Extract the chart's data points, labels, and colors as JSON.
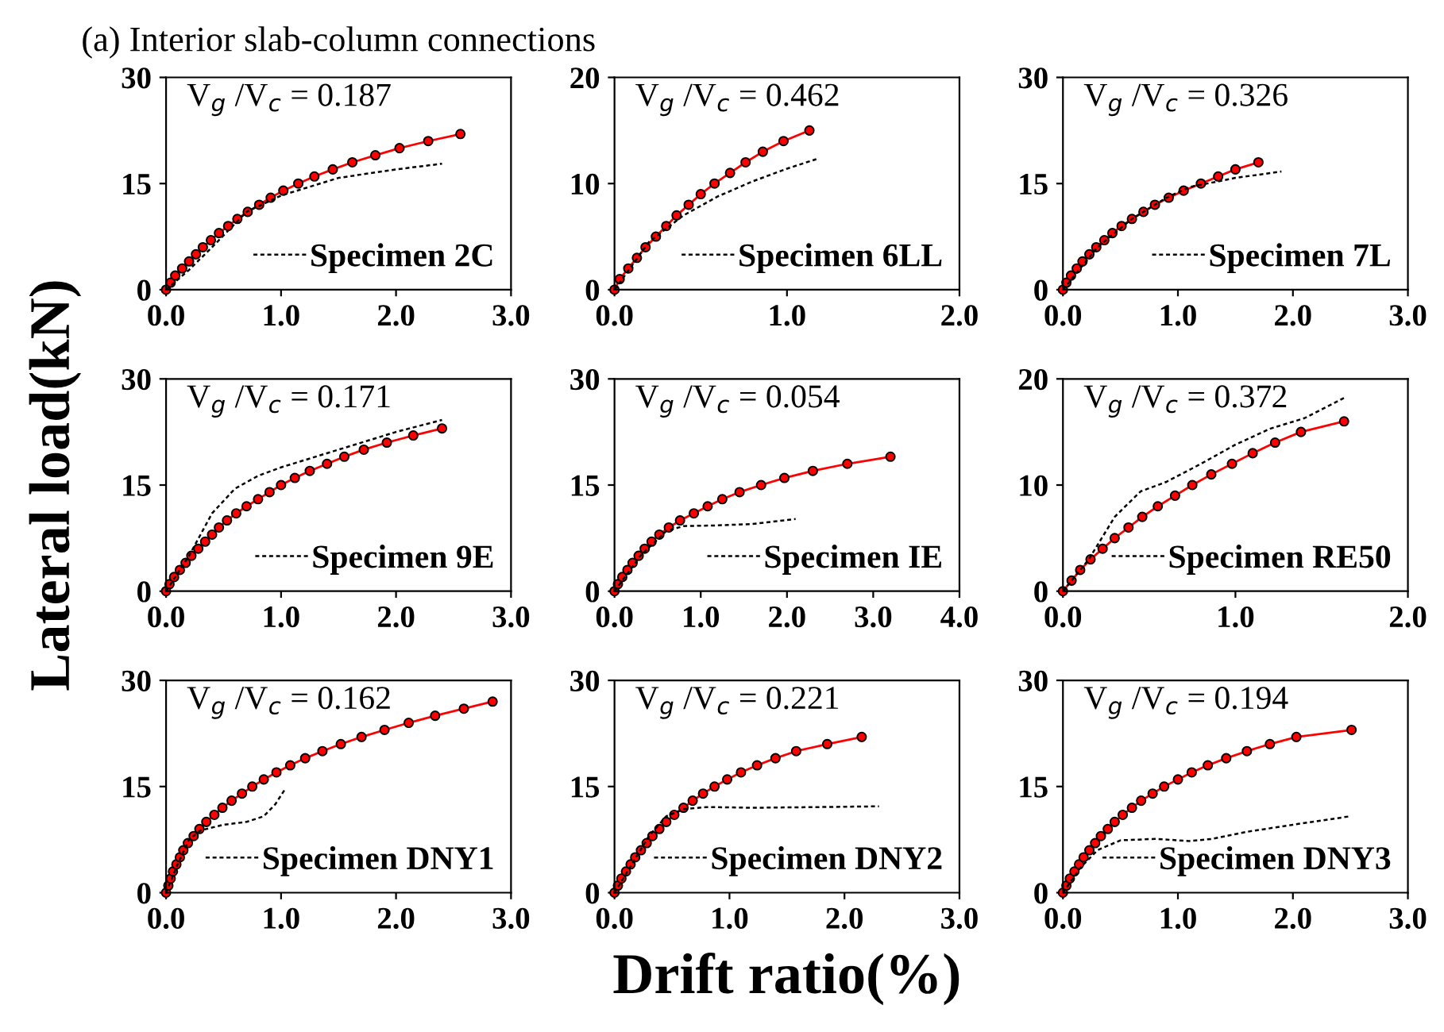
{
  "chart_data": [
    {
      "type": "line",
      "title": "(a) Interior slab-column connections",
      "annotations": [
        "V$_{g}$ /V$_{c}$ = 0.187"
      ],
      "xlim": [
        0,
        3
      ],
      "xticks": [
        {
          "value": 0,
          "label": "0.0"
        },
        {
          "value": 1,
          "label": "1.0"
        },
        {
          "value": 2,
          "label": "2.0"
        },
        {
          "value": 3,
          "label": "3.0"
        }
      ],
      "ylim": [
        0,
        30
      ],
      "yticks": [
        0,
        15,
        30
      ],
      "grid": false,
      "legend": "bottom right",
      "series": [
        {
          "color": "#ff0000",
          "marker": "circle",
          "line_style": "solid",
          "x": [
            0,
            0.04,
            0.08,
            0.14,
            0.2,
            0.26,
            0.32,
            0.39,
            0.46,
            0.54,
            0.62,
            0.71,
            0.81,
            0.91,
            1.02,
            1.15,
            1.29,
            1.45,
            1.62,
            1.82,
            2.03,
            2.28,
            2.56
          ],
          "values": [
            0,
            1,
            2,
            3,
            4,
            5,
            6,
            7,
            8,
            9,
            10,
            11,
            12,
            13,
            14,
            15,
            16,
            17,
            18,
            19,
            20,
            21,
            22
          ]
        },
        {
          "name": "Specimen 2C",
          "color": "#000000",
          "marker": "none",
          "line_style": "dashed",
          "x": [
            0,
            0.2,
            0.4,
            0.7,
            1.0,
            1.5,
            2.0,
            2.4
          ],
          "values": [
            0,
            2.8,
            6,
            11,
            13.3,
            15.8,
            17,
            17.8
          ]
        }
      ]
    },
    {
      "type": "line",
      "annotations": [
        "V$_{g}$ /V$_{c}$ = 0.462"
      ],
      "xlim": [
        0,
        2
      ],
      "xticks": [
        {
          "value": 0,
          "label": "0.0"
        },
        {
          "value": 1,
          "label": "1.0"
        },
        {
          "value": 2,
          "label": "2.0"
        }
      ],
      "ylim": [
        0,
        20
      ],
      "yticks": [
        0,
        10,
        20
      ],
      "grid": false,
      "legend": "bottom right",
      "series": [
        {
          "color": "#ff0000",
          "marker": "circle",
          "line_style": "solid",
          "x": [
            0,
            0.03,
            0.08,
            0.13,
            0.18,
            0.24,
            0.3,
            0.36,
            0.43,
            0.5,
            0.58,
            0.67,
            0.76,
            0.86,
            0.98,
            1.13
          ],
          "values": [
            0,
            1,
            2,
            3,
            4,
            5,
            6,
            7,
            8,
            9,
            10,
            11,
            12,
            13,
            14,
            15
          ]
        },
        {
          "name": "Specimen 6LL",
          "color": "#000000",
          "marker": "none",
          "line_style": "dashed",
          "x": [
            0,
            0.2,
            0.4,
            0.6,
            0.8,
            1.0,
            1.17
          ],
          "values": [
            0,
            4.5,
            7,
            8.8,
            10.2,
            11.4,
            12.3
          ]
        }
      ]
    },
    {
      "type": "line",
      "annotations": [
        "V$_{g}$ /V$_{c}$ = 0.326"
      ],
      "xlim": [
        0,
        3
      ],
      "xticks": [
        {
          "value": 0,
          "label": "0.0"
        },
        {
          "value": 1,
          "label": "1.0"
        },
        {
          "value": 2,
          "label": "2.0"
        },
        {
          "value": 3,
          "label": "3.0"
        }
      ],
      "ylim": [
        0,
        30
      ],
      "yticks": [
        0,
        15,
        30
      ],
      "grid": false,
      "legend": "bottom right",
      "series": [
        {
          "color": "#ff0000",
          "marker": "circle",
          "line_style": "solid",
          "x": [
            0,
            0.03,
            0.07,
            0.12,
            0.17,
            0.23,
            0.29,
            0.36,
            0.43,
            0.51,
            0.6,
            0.7,
            0.8,
            0.92,
            1.05,
            1.2,
            1.35,
            1.5,
            1.7
          ],
          "values": [
            0,
            1,
            2,
            3,
            4,
            5,
            6,
            7,
            8,
            9,
            10,
            11,
            12,
            13,
            14,
            15,
            16,
            17,
            18
          ]
        },
        {
          "name": "Specimen 7L",
          "color": "#000000",
          "marker": "none",
          "line_style": "dashed",
          "x": [
            0,
            0.3,
            0.6,
            0.9,
            1.1,
            1.5,
            1.9
          ],
          "values": [
            0,
            6,
            10,
            13,
            14.5,
            15.8,
            16.7
          ]
        }
      ]
    },
    {
      "type": "line",
      "ylabel": "Lateral load(kN)",
      "annotations": [
        "V$_{g}$ /V$_{c}$ = 0.171"
      ],
      "xlim": [
        0,
        3
      ],
      "xticks": [
        {
          "value": 0,
          "label": "0.0"
        },
        {
          "value": 1,
          "label": "1.0"
        },
        {
          "value": 2,
          "label": "2.0"
        },
        {
          "value": 3,
          "label": "3.0"
        }
      ],
      "ylim": [
        0,
        30
      ],
      "yticks": [
        0,
        15,
        30
      ],
      "grid": false,
      "legend": "bottom right",
      "series": [
        {
          "color": "#ff0000",
          "marker": "circle",
          "line_style": "solid",
          "x": [
            0,
            0.03,
            0.07,
            0.12,
            0.17,
            0.22,
            0.28,
            0.34,
            0.4,
            0.46,
            0.53,
            0.61,
            0.7,
            0.8,
            0.9,
            1.0,
            1.12,
            1.25,
            1.4,
            1.55,
            1.72,
            1.92,
            2.15,
            2.4
          ],
          "values": [
            0,
            1,
            2,
            3,
            4,
            5,
            6,
            7,
            8,
            9,
            10,
            11,
            12,
            13,
            14,
            15,
            16,
            17,
            18,
            19,
            20,
            21,
            22,
            23
          ]
        },
        {
          "name": "Specimen 9E",
          "color": "#000000",
          "marker": "none",
          "line_style": "dashed",
          "x": [
            0,
            0.2,
            0.4,
            0.6,
            0.8,
            1.0,
            1.5,
            2.0,
            2.4
          ],
          "values": [
            0,
            5,
            11,
            14.5,
            16.3,
            17.5,
            20,
            22.5,
            24.2
          ]
        }
      ]
    },
    {
      "type": "line",
      "annotations": [
        "V$_{g}$ /V$_{c}$ = 0.054"
      ],
      "xlim": [
        0,
        4
      ],
      "xticks": [
        {
          "value": 0,
          "label": "0.0"
        },
        {
          "value": 1,
          "label": "1.0"
        },
        {
          "value": 2,
          "label": "2.0"
        },
        {
          "value": 3,
          "label": "3.0"
        },
        {
          "value": 4,
          "label": "4.0"
        }
      ],
      "ylim": [
        0,
        30
      ],
      "yticks": [
        0,
        15,
        30
      ],
      "grid": false,
      "legend": "bottom right",
      "series": [
        {
          "color": "#ff0000",
          "marker": "circle",
          "line_style": "solid",
          "x": [
            0,
            0.04,
            0.09,
            0.15,
            0.21,
            0.28,
            0.35,
            0.43,
            0.52,
            0.63,
            0.76,
            0.92,
            1.08,
            1.25,
            1.45,
            1.7,
            1.97,
            2.3,
            2.7,
            3.2
          ],
          "values": [
            0,
            1,
            2,
            3,
            4,
            5,
            6,
            7,
            8,
            9,
            10,
            11,
            12,
            13,
            14,
            15,
            16,
            17,
            18,
            19
          ]
        },
        {
          "name": "Specimen IE",
          "color": "#000000",
          "marker": "none",
          "line_style": "dashed",
          "x": [
            0,
            0.3,
            0.6,
            0.8,
            1.2,
            1.6,
            2.1
          ],
          "values": [
            0,
            5,
            8.5,
            9.2,
            9.3,
            9.5,
            10.2
          ]
        }
      ]
    },
    {
      "type": "line",
      "annotations": [
        "V$_{g}$ /V$_{c}$ = 0.372"
      ],
      "xlim": [
        0,
        2
      ],
      "xticks": [
        {
          "value": 0,
          "label": "0.0"
        },
        {
          "value": 1,
          "label": "1.0"
        },
        {
          "value": 2,
          "label": "2.0"
        }
      ],
      "ylim": [
        0,
        20
      ],
      "yticks": [
        0,
        10,
        20
      ],
      "grid": false,
      "legend": "bottom right",
      "series": [
        {
          "color": "#ff0000",
          "marker": "circle",
          "line_style": "solid",
          "x": [
            0,
            0.05,
            0.1,
            0.16,
            0.23,
            0.3,
            0.38,
            0.46,
            0.55,
            0.65,
            0.75,
            0.86,
            0.98,
            1.1,
            1.23,
            1.38,
            1.63
          ],
          "values": [
            0,
            1,
            2,
            3,
            4,
            5,
            6,
            7,
            8,
            9,
            10,
            11,
            12,
            13,
            14,
            15,
            16
          ]
        },
        {
          "name": "Specimen RE50",
          "color": "#000000",
          "marker": "none",
          "line_style": "dashed",
          "x": [
            0,
            0.15,
            0.3,
            0.45,
            0.6,
            0.8,
            1.0,
            1.2,
            1.4,
            1.63
          ],
          "values": [
            0,
            3,
            7,
            9.4,
            10.3,
            12,
            13.8,
            15.3,
            16.3,
            18.2
          ]
        }
      ]
    },
    {
      "type": "line",
      "annotations": [
        "V$_{g}$ /V$_{c}$ = 0.162"
      ],
      "xlim": [
        0,
        3
      ],
      "xticks": [
        {
          "value": 0,
          "label": "0.0"
        },
        {
          "value": 1,
          "label": "1.0"
        },
        {
          "value": 2,
          "label": "2.0"
        },
        {
          "value": 3,
          "label": "3.0"
        }
      ],
      "ylim": [
        0,
        30
      ],
      "yticks": [
        0,
        15,
        30
      ],
      "grid": false,
      "legend": "bottom right",
      "series": [
        {
          "color": "#ff0000",
          "marker": "circle",
          "line_style": "solid",
          "x": [
            0,
            0.02,
            0.04,
            0.06,
            0.09,
            0.12,
            0.15,
            0.19,
            0.24,
            0.29,
            0.35,
            0.42,
            0.49,
            0.57,
            0.66,
            0.75,
            0.85,
            0.96,
            1.08,
            1.21,
            1.36,
            1.52,
            1.7,
            1.9,
            2.11,
            2.34,
            2.59,
            2.84
          ],
          "values": [
            0,
            1,
            2,
            3,
            4,
            5,
            6,
            7,
            8,
            9,
            10,
            11,
            12,
            13,
            14,
            15,
            16,
            17,
            18,
            19,
            20,
            21,
            22,
            23,
            24,
            25,
            26,
            27
          ]
        },
        {
          "name": "Specimen DNY1",
          "color": "#000000",
          "marker": "none",
          "line_style": "dashed",
          "x": [
            0,
            0.1,
            0.2,
            0.3,
            0.5,
            0.7,
            0.85,
            0.95,
            1.03
          ],
          "values": [
            0,
            4,
            7.5,
            8.8,
            9.6,
            10,
            10.8,
            12.5,
            14.5
          ]
        }
      ]
    },
    {
      "type": "line",
      "xlabel": "Drift ratio(%)",
      "annotations": [
        "V$_{g}$ /V$_{c}$ = 0.221"
      ],
      "xlim": [
        0,
        3
      ],
      "xticks": [
        {
          "value": 0,
          "label": "0.0"
        },
        {
          "value": 1,
          "label": "1.0"
        },
        {
          "value": 2,
          "label": "2.0"
        },
        {
          "value": 3,
          "label": "3.0"
        }
      ],
      "ylim": [
        0,
        30
      ],
      "yticks": [
        0,
        15,
        30
      ],
      "grid": false,
      "legend": "bottom right",
      "series": [
        {
          "color": "#ff0000",
          "marker": "circle",
          "line_style": "solid",
          "x": [
            0,
            0.03,
            0.06,
            0.1,
            0.14,
            0.18,
            0.23,
            0.28,
            0.33,
            0.39,
            0.45,
            0.52,
            0.6,
            0.68,
            0.77,
            0.87,
            0.98,
            1.1,
            1.24,
            1.4,
            1.58,
            1.85,
            2.15
          ],
          "values": [
            0,
            1,
            2,
            3,
            4,
            5,
            6,
            7,
            8,
            9,
            10,
            11,
            12,
            13,
            14,
            15,
            16,
            17,
            18,
            19,
            20,
            21,
            22
          ]
        },
        {
          "name": "Specimen DNY2",
          "color": "#000000",
          "marker": "none",
          "line_style": "dashed",
          "x": [
            0,
            0.15,
            0.3,
            0.45,
            0.6,
            0.8,
            1.2,
            1.8,
            2.3
          ],
          "values": [
            0,
            4,
            8,
            10.8,
            11.8,
            12.1,
            12,
            12.1,
            12.2
          ]
        }
      ]
    },
    {
      "type": "line",
      "annotations": [
        "V$_{g}$ /V$_{c}$ = 0.194"
      ],
      "xlim": [
        0,
        3
      ],
      "xticks": [
        {
          "value": 0,
          "label": "0.0"
        },
        {
          "value": 1,
          "label": "1.0"
        },
        {
          "value": 2,
          "label": "2.0"
        },
        {
          "value": 3,
          "label": "3.0"
        }
      ],
      "ylim": [
        0,
        30
      ],
      "yticks": [
        0,
        15,
        30
      ],
      "grid": false,
      "legend": "bottom right",
      "series": [
        {
          "color": "#ff0000",
          "marker": "circle",
          "line_style": "solid",
          "x": [
            0,
            0.03,
            0.06,
            0.1,
            0.14,
            0.18,
            0.23,
            0.28,
            0.33,
            0.39,
            0.45,
            0.52,
            0.6,
            0.68,
            0.78,
            0.88,
            1.0,
            1.12,
            1.26,
            1.42,
            1.6,
            1.8,
            2.03,
            2.51
          ],
          "values": [
            0,
            1,
            2,
            3,
            4,
            5,
            6,
            7,
            8,
            9,
            10,
            11,
            12,
            13,
            14,
            15,
            16,
            17,
            18,
            19,
            20,
            21,
            22,
            23
          ]
        },
        {
          "name": "Specimen DNY3",
          "color": "#000000",
          "marker": "none",
          "line_style": "dashed",
          "x": [
            0,
            0.15,
            0.3,
            0.5,
            0.8,
            1.1,
            1.3,
            1.6,
            2.0,
            2.5
          ],
          "values": [
            0,
            3.5,
            6,
            7.4,
            7.6,
            7.3,
            7.6,
            8.6,
            9.6,
            10.8
          ]
        }
      ]
    }
  ]
}
